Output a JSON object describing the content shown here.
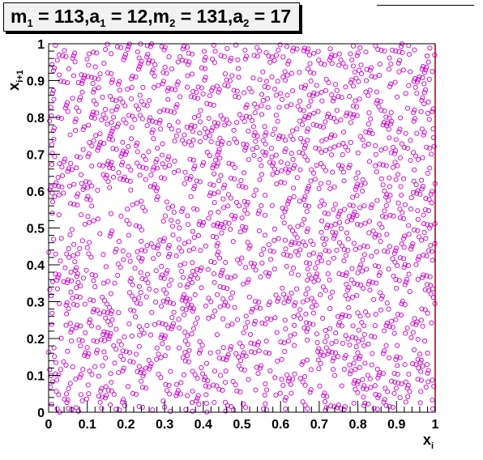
{
  "title": {
    "parts": [
      {
        "t": "m",
        "sub": "1",
        "rest": " = 113, "
      },
      {
        "t": "a",
        "sub": "1",
        "rest": " = 12, "
      },
      {
        "t": "m",
        "sub": "2",
        "rest": " = 131, "
      },
      {
        "t": "a",
        "sub": "2",
        "rest": " = 17"
      }
    ]
  },
  "chart_data": {
    "type": "scatter",
    "generator": {
      "m1": 113,
      "a1": 12,
      "m2": 131,
      "a2": 17
    },
    "xlabel_main": "x",
    "xlabel_sub": "i",
    "ylabel_main": "x",
    "ylabel_sub": "i+1",
    "xlim": [
      0,
      1
    ],
    "ylim": [
      0,
      1
    ],
    "x_ticks": [
      "0",
      "0.1",
      "0.2",
      "0.3",
      "0.4",
      "0.5",
      "0.6",
      "0.7",
      "0.8",
      "0.9",
      "1"
    ],
    "y_ticks": [
      "0",
      "0.1",
      "0.2",
      "0.3",
      "0.4",
      "0.5",
      "0.6",
      "0.7",
      "0.8",
      "0.9",
      "1"
    ],
    "marker": "open-circle",
    "marker_color": "#cc00cc",
    "grid": false,
    "points_note": "pairs (x_i, x_{i+1}) of the combined generator"
  }
}
